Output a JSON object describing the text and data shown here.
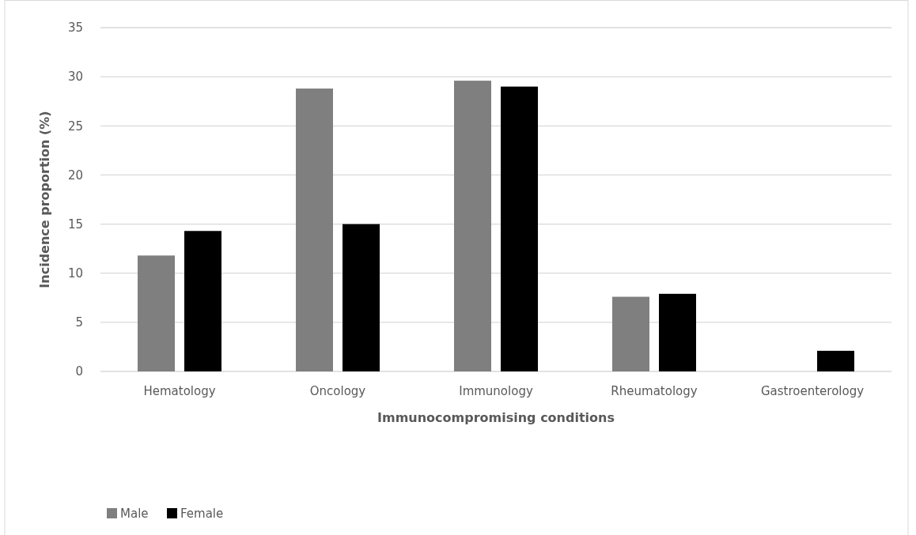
{
  "chart_data": {
    "type": "bar",
    "xlabel": "Immunocompromising conditions",
    "ylabel": "Incidence proportion (%)",
    "categories": [
      "Hematology",
      "Oncology",
      "Immunology",
      "Rheumatology",
      "Gastroenterology"
    ],
    "series": [
      {
        "name": "Male",
        "color": "#7f7f7f",
        "values": [
          11.8,
          28.8,
          29.6,
          7.6,
          0
        ]
      },
      {
        "name": "Female",
        "color": "#000000",
        "values": [
          14.3,
          15.0,
          29.0,
          7.9,
          2.1
        ]
      }
    ],
    "ylim": [
      0,
      35
    ],
    "yticks": [
      0,
      5,
      10,
      15,
      20,
      25,
      30,
      35
    ],
    "grid": "y",
    "legend": "bottom left"
  }
}
